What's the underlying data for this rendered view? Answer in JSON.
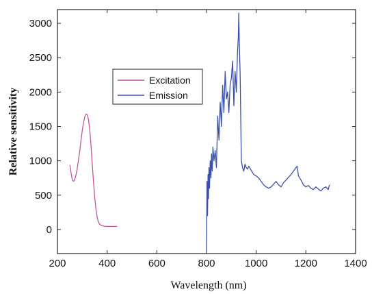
{
  "chart_data": {
    "type": "line",
    "title": "",
    "xlabel": "Wavelength  (nm)",
    "ylabel": "Relative sensitivity",
    "xlim": [
      200,
      1400
    ],
    "ylim": [
      -350,
      3200
    ],
    "xticks": [
      200,
      400,
      600,
      800,
      1000,
      1200,
      1400
    ],
    "yticks": [
      0,
      500,
      1000,
      1500,
      2000,
      2500,
      3000
    ],
    "grid": false,
    "legend_position": "upper-left-center",
    "series": [
      {
        "name": "Excitation",
        "color": "#c0569a",
        "x": [
          250,
          255,
          260,
          265,
          270,
          275,
          280,
          285,
          290,
          295,
          300,
          305,
          310,
          315,
          320,
          325,
          330,
          335,
          340,
          345,
          350,
          355,
          360,
          365,
          370,
          380,
          390,
          400,
          410,
          420,
          430,
          440
        ],
        "y": [
          940,
          820,
          720,
          700,
          730,
          800,
          900,
          1020,
          1150,
          1300,
          1440,
          1560,
          1640,
          1680,
          1670,
          1600,
          1450,
          1220,
          950,
          700,
          470,
          300,
          180,
          110,
          75,
          55,
          48,
          45,
          45,
          45,
          45,
          45
        ]
      },
      {
        "name": "Emission",
        "color": "#3a4fa8",
        "x": [
          800,
          802,
          804,
          806,
          808,
          810,
          812,
          815,
          818,
          820,
          823,
          826,
          830,
          835,
          840,
          845,
          850,
          855,
          860,
          865,
          870,
          875,
          880,
          885,
          890,
          895,
          900,
          905,
          910,
          915,
          920,
          925,
          928,
          930,
          932,
          935,
          938,
          940,
          945,
          950,
          955,
          960,
          965,
          970,
          980,
          990,
          1000,
          1010,
          1020,
          1030,
          1040,
          1050,
          1060,
          1070,
          1080,
          1090,
          1100,
          1110,
          1120,
          1130,
          1140,
          1150,
          1160,
          1165,
          1170,
          1180,
          1190,
          1200,
          1210,
          1220,
          1230,
          1240,
          1250,
          1260,
          1270,
          1280,
          1290,
          1295
        ],
        "y": [
          -320,
          700,
          200,
          800,
          450,
          900,
          600,
          1000,
          750,
          1100,
          850,
          1200,
          1000,
          1150,
          900,
          1650,
          1300,
          1850,
          1500,
          2100,
          1700,
          2300,
          1900,
          2000,
          1700,
          2100,
          2200,
          2450,
          1800,
          2300,
          2000,
          2600,
          2800,
          3150,
          2700,
          2300,
          1600,
          1000,
          900,
          850,
          950,
          900,
          880,
          920,
          860,
          800,
          780,
          750,
          700,
          650,
          620,
          600,
          620,
          660,
          700,
          650,
          620,
          680,
          720,
          760,
          800,
          850,
          900,
          920,
          780,
          720,
          650,
          620,
          640,
          600,
          580,
          620,
          590,
          560,
          600,
          620,
          580,
          650
        ]
      }
    ]
  }
}
